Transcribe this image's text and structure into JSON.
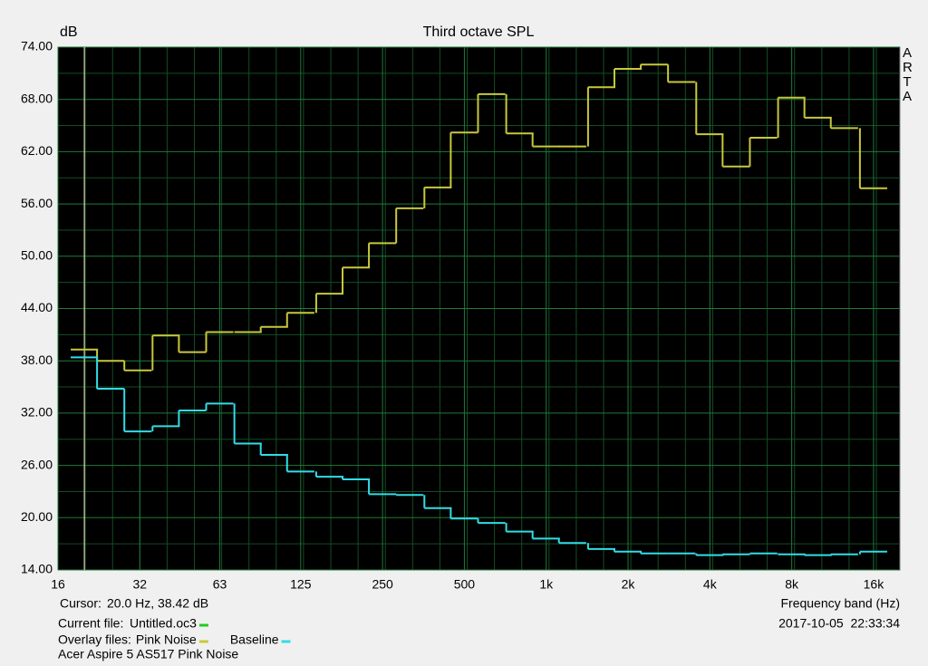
{
  "chart_data": {
    "type": "step",
    "title": "Third octave SPL",
    "y_label": "dB",
    "x_label": "Frequency band (Hz)",
    "side_label": "ARTA",
    "x_log": true,
    "grid": true,
    "x": [
      20,
      25,
      31.5,
      40,
      50,
      63,
      80,
      100,
      125,
      160,
      200,
      250,
      315,
      400,
      500,
      630,
      800,
      1000,
      1250,
      1600,
      2000,
      2500,
      3150,
      4000,
      5000,
      6300,
      8000,
      10000,
      12500,
      16000
    ],
    "series": [
      {
        "name": "Pink Noise",
        "color": "#c8c83c",
        "values": [
          39.3,
          38.0,
          36.9,
          40.9,
          39.0,
          41.3,
          41.3,
          41.9,
          43.5,
          45.7,
          48.7,
          51.5,
          55.5,
          57.9,
          64.2,
          68.6,
          64.1,
          62.6,
          62.6,
          69.4,
          71.5,
          72.0,
          70.0,
          64.0,
          60.3,
          63.6,
          68.2,
          65.9,
          64.7,
          57.8
        ]
      },
      {
        "name": "Baseline",
        "color": "#32dce6",
        "values": [
          38.4,
          34.8,
          29.9,
          30.5,
          32.3,
          33.1,
          28.5,
          27.2,
          25.3,
          24.7,
          24.4,
          22.7,
          22.6,
          21.1,
          19.9,
          19.4,
          18.4,
          17.6,
          17.1,
          16.4,
          16.1,
          15.9,
          15.9,
          15.7,
          15.8,
          15.9,
          15.8,
          15.7,
          15.8,
          16.1
        ]
      }
    ],
    "xlim": [
      16,
      20000
    ],
    "xticks": [
      16,
      32,
      63,
      125,
      250,
      500,
      {
        "value": 1000,
        "label": "1k"
      },
      {
        "value": 2000,
        "label": "2k"
      },
      {
        "value": 4000,
        "label": "4k"
      },
      {
        "value": 8000,
        "label": "8k"
      },
      {
        "value": 16000,
        "label": "16k"
      }
    ],
    "ylim": [
      14,
      74
    ],
    "yticks": [
      {
        "value": 14,
        "label": "14.00"
      },
      {
        "value": 20,
        "label": "20.00"
      },
      {
        "value": 26,
        "label": "26.00"
      },
      {
        "value": 32,
        "label": "32.00"
      },
      {
        "value": 38,
        "label": "38.00"
      },
      {
        "value": 44,
        "label": "44.00"
      },
      {
        "value": 50,
        "label": "50.00"
      },
      {
        "value": 56,
        "label": "56.00"
      },
      {
        "value": 62,
        "label": "62.00"
      },
      {
        "value": 68,
        "label": "68.00"
      },
      {
        "value": 74,
        "label": "74.00"
      }
    ],
    "cursor": {
      "label": "Cursor:",
      "text": "20.0 Hz, 38.42 dB",
      "x": 20
    },
    "footer": {
      "current_file_label": "Current file:",
      "current_file": "Untitled.oc3",
      "current_file_color": "#22cc22",
      "overlay_label": "Overlay files:",
      "timestamp": "2017-10-05  22:33:34",
      "note": "Acer Aspire 5 AS517 Pink Noise"
    }
  }
}
